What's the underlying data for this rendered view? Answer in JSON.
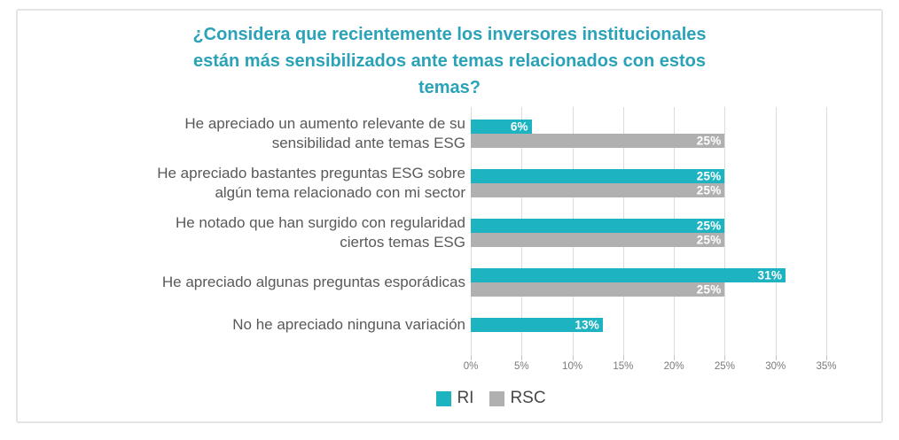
{
  "chart_data": {
    "type": "bar",
    "orientation": "horizontal",
    "title": "¿Considera que recientemente los inversores institucionales están más sensibilizados ante temas relacionados con estos temas?",
    "title_lines": [
      "¿Considera que recientemente los inversores institucionales",
      "están más sensibilizados ante temas relacionados con estos",
      "temas?"
    ],
    "title_color": "#2aa2b8",
    "categories": [
      {
        "label": "He apreciado un aumento relevante de su sensibilidad ante temas ESG",
        "lines": [
          "He apreciado un aumento relevante de su",
          "sensibilidad ante temas ESG"
        ]
      },
      {
        "label": "He apreciado bastantes preguntas ESG sobre algún tema relacionado con mi sector",
        "lines": [
          "He apreciado bastantes preguntas ESG sobre",
          "algún tema relacionado con mi sector"
        ]
      },
      {
        "label": "He notado que han surgido con regularidad ciertos temas ESG",
        "lines": [
          "He notado que han surgido con regularidad",
          "ciertos temas ESG"
        ]
      },
      {
        "label": "He apreciado algunas preguntas esporádicas",
        "lines": [
          "He apreciado algunas preguntas esporádicas"
        ]
      },
      {
        "label": "No he apreciado ninguna variación",
        "lines": [
          "No he apreciado ninguna variación"
        ]
      }
    ],
    "series": [
      {
        "name": "RI",
        "color": "#1eb3c1",
        "values": [
          6,
          25,
          25,
          31,
          13
        ]
      },
      {
        "name": "RSC",
        "color": "#b0b0b0",
        "values": [
          25,
          25,
          25,
          25,
          null
        ]
      }
    ],
    "value_suffix": "%",
    "data_labels": "inside-end-white-bold",
    "xticks": [
      "0%",
      "5%",
      "10%",
      "15%",
      "20%",
      "25%",
      "30%",
      "35%"
    ],
    "xlim": [
      0,
      35
    ],
    "grid": true,
    "legend_position": "bottom"
  }
}
